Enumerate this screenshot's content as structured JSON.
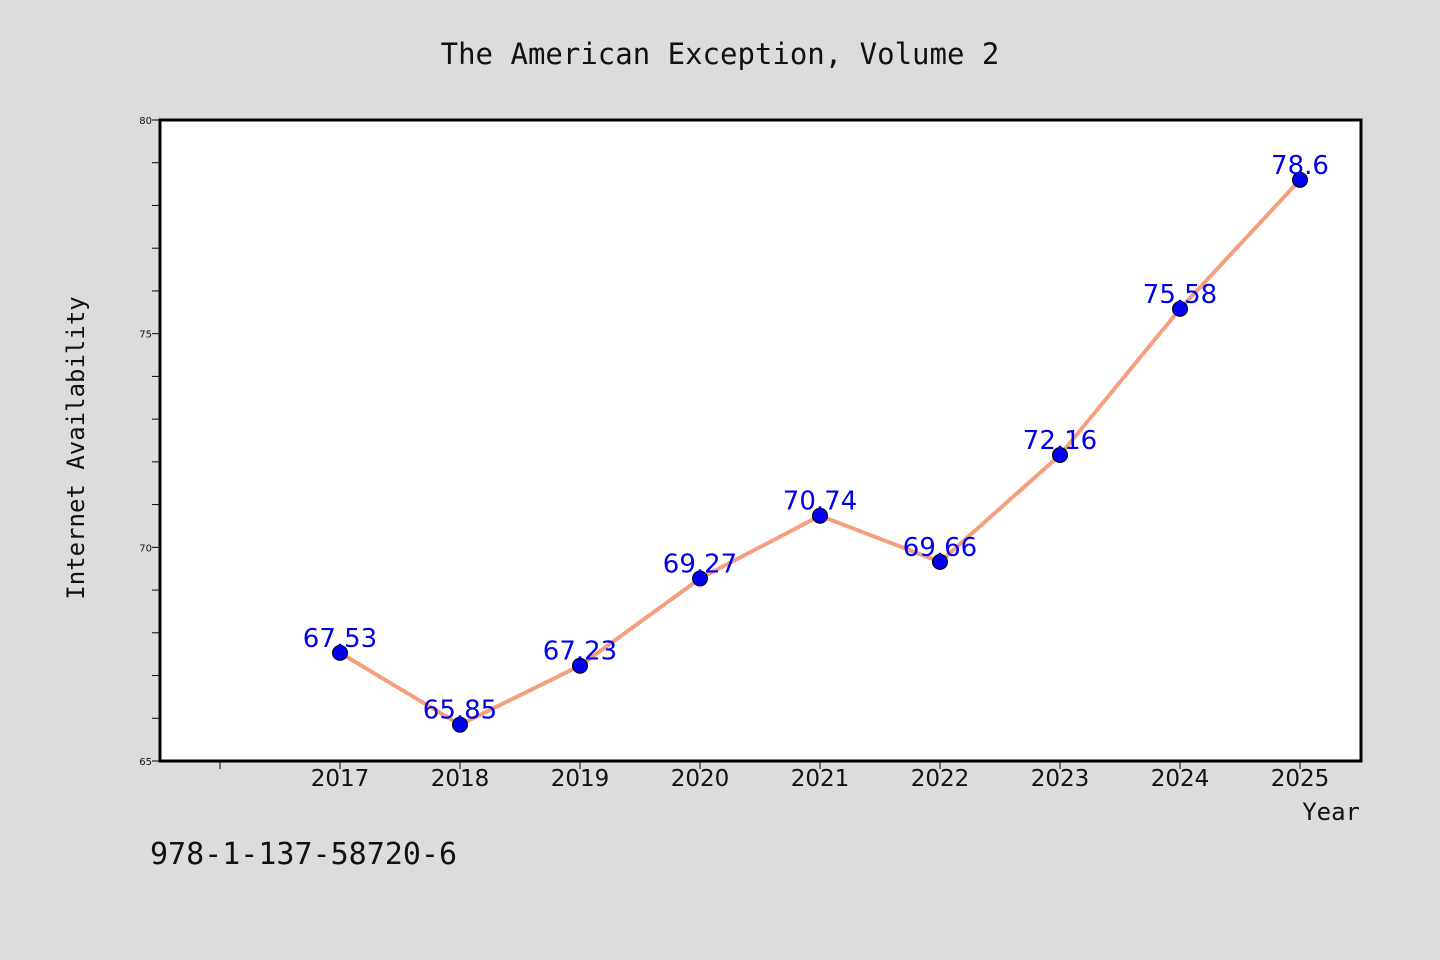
{
  "chart_data": {
    "type": "line",
    "title": "The American Exception, Volume 2",
    "xlabel": "Year",
    "ylabel": "Internet Availability",
    "categories": [
      "2017",
      "2018",
      "2019",
      "2020",
      "2021",
      "2022",
      "2023",
      "2024",
      "2025"
    ],
    "series": [
      {
        "values": [
          67.53,
          65.85,
          67.23,
          69.27,
          70.74,
          69.66,
          72.16,
          75.58,
          78.6
        ]
      }
    ],
    "data_labels": [
      "67.53",
      "65.85",
      "67.23",
      "69.27",
      "70.74",
      "69.66",
      "72.16",
      "75.58",
      "78.6"
    ],
    "ylim": [
      65,
      80
    ],
    "yticks": [
      "65",
      "70",
      "75",
      "80"
    ],
    "grid": false,
    "legend": "none",
    "colors": {
      "line": "#f4a07e",
      "marker": "#0000ee",
      "data_label": "#0000ee",
      "background": "#dcdcdc",
      "plot_background": "#ffffff"
    }
  },
  "footer": {
    "isbn": "978-1-137-58720-6"
  }
}
